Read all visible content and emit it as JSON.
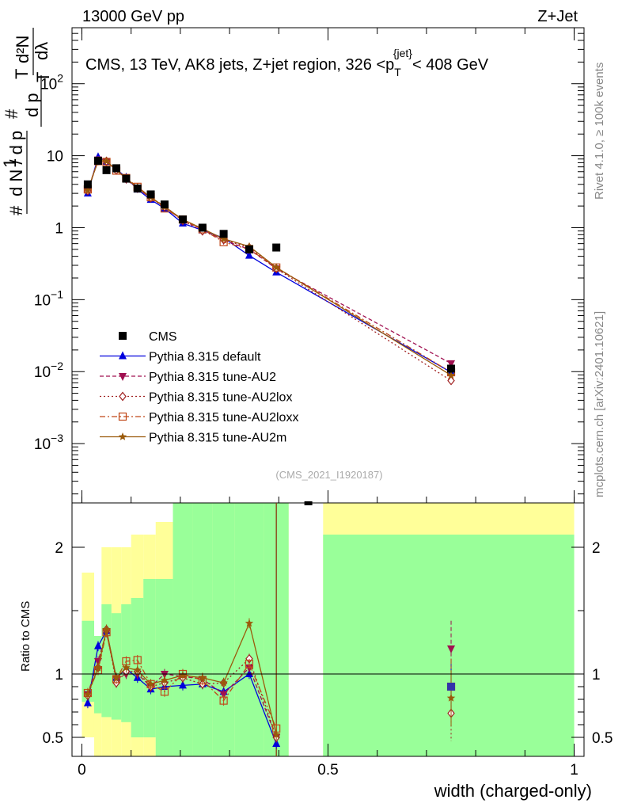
{
  "header": {
    "left": "13000 GeV pp",
    "right": "Z+Jet"
  },
  "side_texts": {
    "rivet": "Rivet 4.1.0, ≥ 100k events",
    "mcplots": "mcplots.cern.ch [arXiv:2401.10621]"
  },
  "chart_data": {
    "type": "line",
    "title": "CMS, 13 TeV, AK8 jets, Z+jet region, 326 <p_T^{jet}< 408 GeV",
    "title_main": "CMS, 13 TeV, AK8 jets, Z+jet region, 326 <p",
    "title_sub": "T",
    "title_sup": "{jet}",
    "title_end": "< 408 GeV",
    "analysis": "(CMS_2021_I1920187)",
    "xlabel": "width (charged-only)",
    "ylabel_ratio": "Ratio to CMS",
    "ylabel_main": "1/N dN/dp_T dλ",
    "ylabel_parts": {
      "hash": "#",
      "one": "1",
      "dN": "d N / d p",
      "T": "T",
      "top": "d²N",
      "mid": "d p",
      "lam": "dλ"
    },
    "xlim": [
      -0.02,
      1.02
    ],
    "ylim": [
      0.00015,
      600
    ],
    "ratio_ylim": [
      0.35,
      2.35
    ],
    "x_ticks": [
      {
        "v": 0,
        "label": "0"
      },
      {
        "v": 0.5,
        "label": "0.5"
      },
      {
        "v": 1,
        "label": "1"
      }
    ],
    "y_ticks": [
      {
        "v": 0.001,
        "base": "10",
        "exp": "−3"
      },
      {
        "v": 0.01,
        "base": "10",
        "exp": "−2"
      },
      {
        "v": 0.1,
        "base": "10",
        "exp": "−1"
      },
      {
        "v": 1,
        "base": "1",
        "exp": ""
      },
      {
        "v": 10,
        "base": "10",
        "exp": ""
      },
      {
        "v": 100,
        "base": "10",
        "exp": "2"
      }
    ],
    "ratio_ticks": [
      {
        "v": 0.5,
        "label": "0.5"
      },
      {
        "v": 1,
        "label": "1"
      },
      {
        "v": 2,
        "label": "2"
      }
    ],
    "bins": [
      {
        "x0": 0.0,
        "x1": 0.025
      },
      {
        "x0": 0.025,
        "x1": 0.04
      },
      {
        "x0": 0.04,
        "x1": 0.06
      },
      {
        "x0": 0.06,
        "x1": 0.08
      },
      {
        "x0": 0.08,
        "x1": 0.1
      },
      {
        "x0": 0.1,
        "x1": 0.125
      },
      {
        "x0": 0.125,
        "x1": 0.15
      },
      {
        "x0": 0.15,
        "x1": 0.185
      },
      {
        "x0": 0.185,
        "x1": 0.225
      },
      {
        "x0": 0.225,
        "x1": 0.265
      },
      {
        "x0": 0.265,
        "x1": 0.31
      },
      {
        "x0": 0.31,
        "x1": 0.37
      },
      {
        "x0": 0.37,
        "x1": 0.42
      },
      {
        "x0": 0.42,
        "x1": 0.49
      },
      {
        "x0": 0.49,
        "x1": 1.0
      }
    ],
    "x": [
      0.012,
      0.033,
      0.05,
      0.07,
      0.09,
      0.113,
      0.14,
      0.168,
      0.205,
      0.245,
      0.288,
      0.34,
      0.395,
      0.46,
      0.75
    ],
    "bands": {
      "yellow": [
        [
          0.5,
          1.8
        ],
        [
          0.35,
          1.0
        ],
        [
          0.35,
          2.0
        ],
        [
          0.35,
          2.0
        ],
        [
          0.35,
          2.0
        ],
        [
          0.35,
          2.1
        ],
        [
          0.35,
          2.1
        ],
        [
          0.35,
          2.2
        ],
        [
          0.35,
          2.35
        ],
        [
          0.35,
          2.35
        ],
        [
          0.35,
          2.35
        ],
        [
          0.35,
          2.35
        ],
        [
          0.35,
          2.35
        ],
        null,
        [
          0.35,
          2.35
        ]
      ],
      "green": [
        [
          0.78,
          1.42
        ],
        [
          0.69,
          1.3
        ],
        [
          0.66,
          1.55
        ],
        [
          0.64,
          1.48
        ],
        [
          0.62,
          1.55
        ],
        [
          0.5,
          1.6
        ],
        [
          0.5,
          1.75
        ],
        [
          0.35,
          1.75
        ],
        [
          0.35,
          2.35
        ],
        [
          0.35,
          2.35
        ],
        [
          0.35,
          2.35
        ],
        [
          0.35,
          2.35
        ],
        [
          0.35,
          2.35
        ],
        null,
        [
          0.35,
          2.1
        ]
      ]
    },
    "data": {
      "name": "CMS",
      "values": [
        4.0,
        8.5,
        6.3,
        6.7,
        4.8,
        3.5,
        2.9,
        2.1,
        1.3,
        1.0,
        0.82,
        0.5,
        0.53,
        0.0002,
        0.011
      ],
      "color": "#000000"
    },
    "series": [
      {
        "name": "Pythia 8.315 default",
        "color": "#0000dd",
        "marker": "triangle-up",
        "dash": "",
        "values": [
          3.0,
          9.6,
          8.3,
          6.5,
          5.0,
          3.4,
          2.45,
          1.85,
          1.15,
          0.92,
          0.72,
          0.41,
          0.24,
          0.09,
          0.0098
        ],
        "ratio": [
          0.77,
          1.22,
          1.34,
          0.97,
          1.04,
          0.97,
          0.88,
          0.9,
          0.91,
          0.92,
          0.86,
          1.0,
          0.45,
          null,
          0.9
        ]
      },
      {
        "name": "Pythia 8.315 tune-AU2",
        "color": "#a01050",
        "marker": "triangle-down",
        "dash": "5,3",
        "values": [
          3.3,
          8.8,
          8.2,
          6.4,
          4.7,
          3.5,
          2.6,
          2.0,
          1.25,
          0.95,
          0.67,
          0.5,
          0.27,
          0.14,
          0.013
        ],
        "ratio": [
          0.84,
          1.1,
          1.33,
          0.96,
          1.0,
          1.0,
          0.9,
          1.0,
          0.98,
          0.96,
          0.84,
          1.05,
          0.5,
          null,
          1.2
        ]
      },
      {
        "name": "Pythia 8.315 tune-AU2lox",
        "color": "#a02020",
        "marker": "diamond-open",
        "dash": "2,3",
        "values": [
          3.25,
          8.5,
          8.4,
          6.3,
          4.8,
          3.55,
          2.6,
          1.95,
          1.25,
          0.9,
          0.68,
          0.53,
          0.27,
          0.12,
          0.0075
        ],
        "ratio": [
          0.83,
          1.05,
          1.35,
          0.93,
          1.02,
          1.02,
          0.9,
          0.93,
          0.97,
          0.92,
          0.93,
          1.12,
          0.5,
          null,
          0.69
        ]
      },
      {
        "name": "Pythia 8.315 tune-AU2loxx",
        "color": "#c04818",
        "marker": "square-open",
        "dash": "7,3,2,3",
        "values": [
          3.4,
          8.4,
          8.2,
          6.2,
          4.9,
          3.7,
          2.65,
          1.85,
          1.3,
          0.95,
          0.63,
          0.5,
          0.28,
          0.12,
          0.0098
        ],
        "ratio": [
          0.85,
          1.03,
          1.33,
          0.96,
          1.1,
          1.11,
          0.92,
          0.86,
          1.0,
          0.95,
          0.79,
          1.08,
          0.57,
          null,
          0.9
        ]
      },
      {
        "name": "Pythia 8.315 tune-AU2m",
        "color": "#9a5a0a",
        "marker": "star",
        "dash": "",
        "values": [
          3.3,
          8.6,
          8.4,
          6.4,
          4.85,
          3.6,
          2.65,
          1.95,
          1.3,
          0.97,
          0.7,
          0.55,
          0.28,
          0.11,
          0.0089
        ],
        "ratio": [
          0.84,
          1.05,
          1.35,
          0.97,
          1.05,
          1.03,
          0.92,
          0.95,
          0.99,
          0.97,
          0.93,
          1.4,
          0.52,
          null,
          0.81
        ]
      }
    ]
  }
}
